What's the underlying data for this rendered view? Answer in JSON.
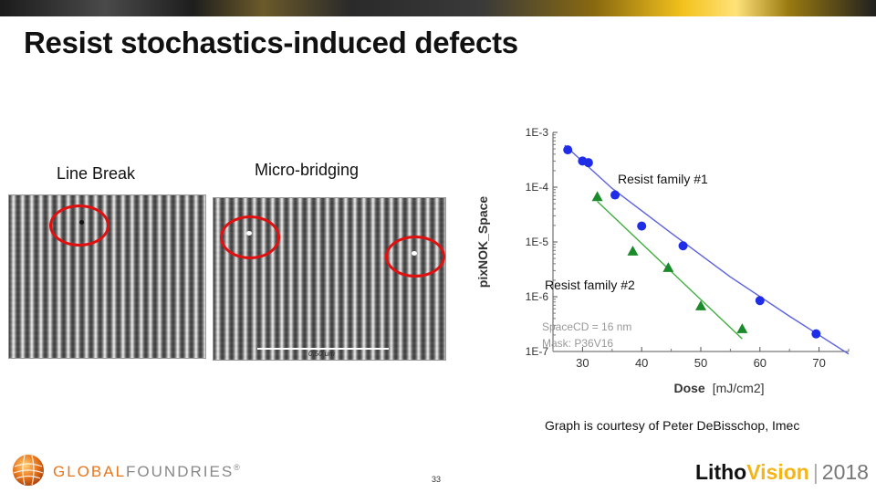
{
  "slide": {
    "title": "Resist stochastics-induced defects",
    "page_number": "33",
    "credit": "Graph is courtesy of Peter DeBisschop, Imec"
  },
  "images": [
    {
      "label": "Line Break"
    },
    {
      "label": "Micro-bridging",
      "scale_bar": "0.50 um"
    }
  ],
  "footer": {
    "company_part1": "GLOBAL",
    "company_part2": "FOUNDRIES",
    "company_mark": "®",
    "event_part1": "Litho",
    "event_part2": "Vision",
    "event_sep": "|",
    "event_year": "2018"
  },
  "colors": {
    "series1": "#1f2ee6",
    "series2": "#1a8a2a",
    "fit1": "#5b62e0",
    "fit2": "#3fae3f",
    "highlight_ring": "#e01010",
    "brand_orange": "#e8761c",
    "brand_gold": "#f3b51a"
  },
  "chart_data": {
    "type": "scatter",
    "xlabel": "Dose",
    "xunit": "[mJ/cm2]",
    "ylabel": "pixNOK_Space",
    "xlim": [
      25,
      75
    ],
    "ylim": [
      1e-07,
      0.001
    ],
    "yscale": "log",
    "xticks": [
      30,
      40,
      50,
      60,
      70
    ],
    "yticks": [
      "1E-7",
      "1E-6",
      "1E-5",
      "1E-4",
      "1E-3"
    ],
    "grid": false,
    "annotations": [
      "SpaceCD = 16 nm",
      "Mask: P36V16"
    ],
    "series": [
      {
        "name": "Resist family #1",
        "marker": "circle",
        "x": [
          27.5,
          30,
          31,
          35.5,
          40,
          47,
          60,
          69.5
        ],
        "y": [
          0.00048,
          0.0003,
          0.00028,
          7.2e-05,
          1.95e-05,
          8.5e-06,
          8.5e-07,
          2.1e-07
        ],
        "fit_x": [
          27,
          35,
          45,
          55,
          65,
          75
        ],
        "fit_y": [
          0.00058,
          9.5e-05,
          1.45e-05,
          2.3e-06,
          4.4e-07,
          9e-08
        ]
      },
      {
        "name": "Resist family #2",
        "marker": "triangle",
        "x": [
          32.5,
          38.5,
          44.5,
          50,
          57
        ],
        "y": [
          6.7e-05,
          6.8e-06,
          3.4e-06,
          6.8e-07,
          2.6e-07
        ],
        "fit_x": [
          32.5,
          57
        ],
        "fit_y": [
          5.5e-05,
          1.7e-07
        ]
      }
    ]
  }
}
